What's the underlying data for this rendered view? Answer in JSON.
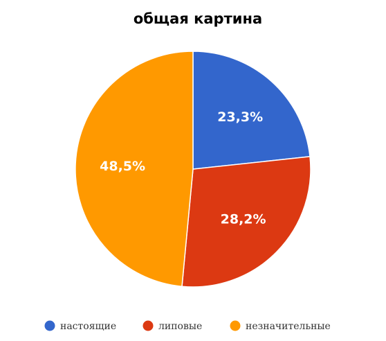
{
  "chart_data": {
    "type": "pie",
    "title": "общая картина",
    "legend_position": "bottom",
    "slices": [
      {
        "label": "настоящие",
        "value": 23.3,
        "display": "23,3%",
        "color": "#3366CC"
      },
      {
        "label": "липовые",
        "value": 28.2,
        "display": "28,2%",
        "color": "#DC3912"
      },
      {
        "label": "незначительные",
        "value": 48.5,
        "display": "48,5%",
        "color": "#FF9900"
      }
    ]
  }
}
